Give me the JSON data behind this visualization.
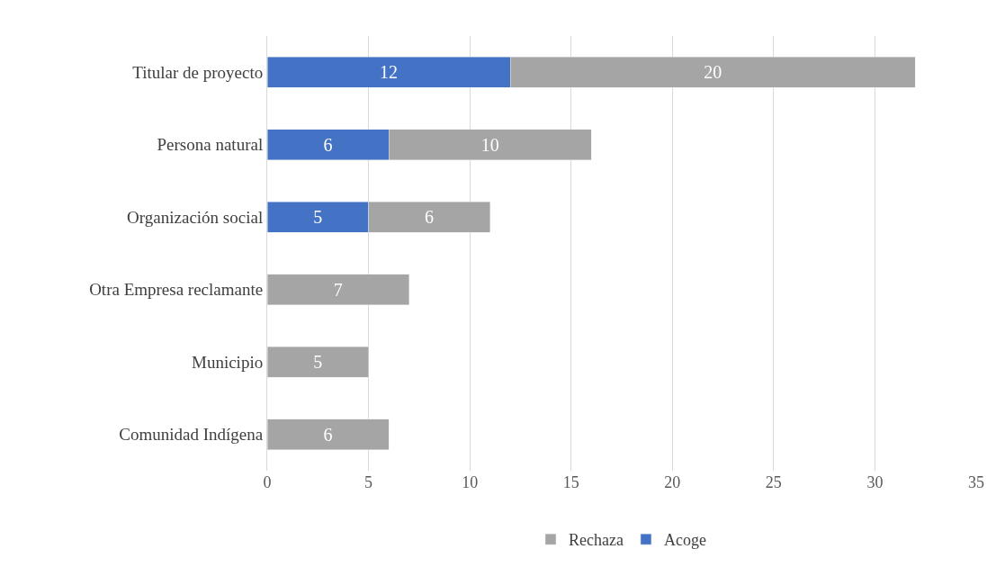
{
  "chart_data": {
    "type": "bar",
    "orientation": "horizontal",
    "stacked": true,
    "categories": [
      "Titular de proyecto",
      "Persona natural",
      "Organización social",
      "Otra Empresa reclamante",
      "Municipio",
      "Comunidad Indígena"
    ],
    "series": [
      {
        "name": "Acoge",
        "color": "#4472c4",
        "values": [
          12,
          6,
          5,
          null,
          null,
          null
        ]
      },
      {
        "name": "Rechaza",
        "color": "#a5a5a5",
        "values": [
          20,
          10,
          6,
          7,
          5,
          6
        ]
      }
    ],
    "xlim": [
      0,
      35
    ],
    "xticks": [
      0,
      5,
      10,
      15,
      20,
      25,
      30,
      35
    ],
    "grid": "x",
    "legend": "bottom",
    "data_labels": true
  }
}
